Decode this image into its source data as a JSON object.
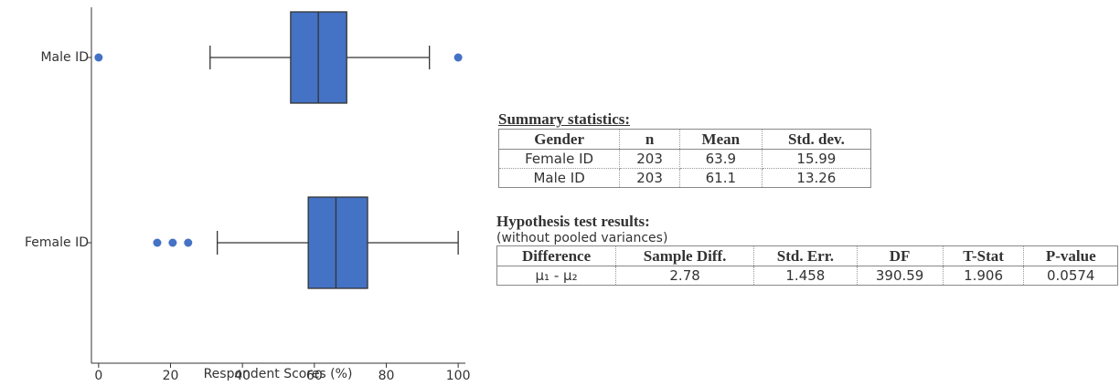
{
  "chart_data": {
    "type": "box",
    "x_label": "Respondent Scores (%)",
    "categories": [
      "Male ID",
      "Female ID"
    ],
    "color": "#4472c4",
    "boxes": [
      {
        "min": 31,
        "q1": 53.4,
        "median": 61.1,
        "q3": 69,
        "max": 92,
        "outliers": [
          0,
          100
        ]
      },
      {
        "min": 33,
        "q1": 58.3,
        "median": 66,
        "q3": 74.8,
        "max": 100,
        "outliers": [
          16.3,
          20.6,
          24.9
        ]
      }
    ],
    "xlim": [
      -2,
      102
    ],
    "xticks": [
      0,
      20,
      40,
      60,
      80,
      100
    ]
  },
  "summary": {
    "title": "Summary statistics:",
    "headers": [
      "Gender",
      "n",
      "Mean",
      "Std. dev."
    ],
    "rows": [
      [
        "Female ID",
        203,
        63.9,
        15.99
      ],
      [
        "Male ID",
        203,
        61.1,
        13.26
      ]
    ]
  },
  "hypothesis": {
    "title": "Hypothesis test results:",
    "subtitle": "(without pooled variances)",
    "headers": [
      "Difference",
      "Sample Diff.",
      "Std. Err.",
      "DF",
      "T-Stat",
      "P-value"
    ],
    "rows": [
      [
        "μ₁ - μ₂",
        2.78,
        1.458,
        390.59,
        1.906,
        0.0574
      ]
    ]
  }
}
